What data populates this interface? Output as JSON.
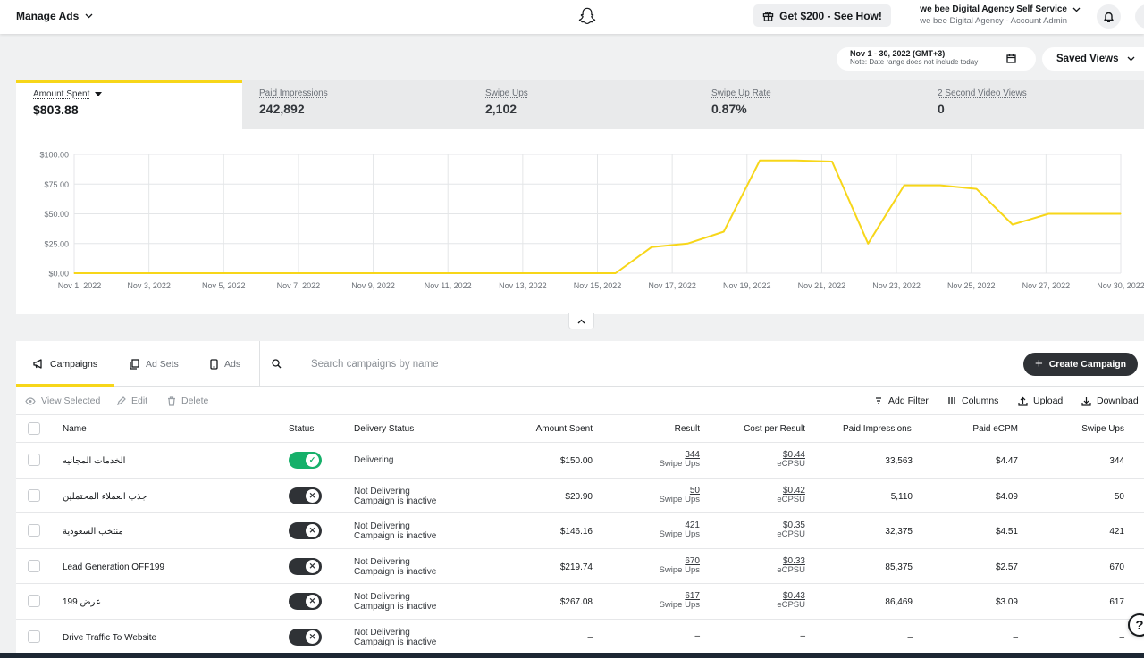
{
  "topbar": {
    "title": "Manage Ads",
    "promo": "Get $200 - See How!",
    "account_name": "we bee Digital Agency Self Service",
    "account_role": "we bee Digital Agency - Account Admin"
  },
  "date_range": {
    "label": "Nov 1 - 30, 2022 (GMT+3)",
    "note": "Note: Date range does not include today"
  },
  "saved_views": "Saved Views",
  "metrics": [
    {
      "label": "Amount Spent",
      "value": "$803.88",
      "active": true
    },
    {
      "label": "Paid Impressions",
      "value": "242,892"
    },
    {
      "label": "Swipe Ups",
      "value": "2,102"
    },
    {
      "label": "Swipe Up Rate",
      "value": "0.87%"
    },
    {
      "label": "2 Second Video Views",
      "value": "0"
    }
  ],
  "chart_data": {
    "type": "line",
    "title": "",
    "xlabel": "",
    "ylabel": "",
    "ylim": [
      0,
      100
    ],
    "y_ticks": [
      "$100.00",
      "$75.00",
      "$50.00",
      "$25.00",
      "$0.00"
    ],
    "x_ticks": [
      "Nov 1, 2022",
      "Nov 3, 2022",
      "Nov 5, 2022",
      "Nov 7, 2022",
      "Nov 9, 2022",
      "Nov 11, 2022",
      "Nov 13, 2022",
      "Nov 15, 2022",
      "Nov 17, 2022",
      "Nov 19, 2022",
      "Nov 21, 2022",
      "Nov 23, 2022",
      "Nov 25, 2022",
      "Nov 27, 2022",
      "Nov 30, 2022"
    ],
    "grid": true,
    "line_color": "#f7d619",
    "series": [
      {
        "x": [
          "Nov 1",
          "Nov 2",
          "Nov 3",
          "Nov 4",
          "Nov 5",
          "Nov 6",
          "Nov 7",
          "Nov 8",
          "Nov 9",
          "Nov 10",
          "Nov 11",
          "Nov 12",
          "Nov 13",
          "Nov 14",
          "Nov 15",
          "Nov 16",
          "Nov 17",
          "Nov 18",
          "Nov 19",
          "Nov 20",
          "Nov 21",
          "Nov 22",
          "Nov 23",
          "Nov 24",
          "Nov 25",
          "Nov 26",
          "Nov 27",
          "Nov 28",
          "Nov 29",
          "Nov 30"
        ],
        "values": [
          0,
          0,
          0,
          0,
          0,
          0,
          0,
          0,
          0,
          0,
          0,
          0,
          0,
          0,
          0,
          0,
          22,
          25,
          35,
          95,
          95,
          94,
          25,
          74,
          74,
          71,
          41,
          50,
          50,
          50
        ]
      }
    ]
  },
  "tabs": [
    {
      "label": "Campaigns",
      "icon": "megaphone-icon"
    },
    {
      "label": "Ad Sets",
      "icon": "copy-icon"
    },
    {
      "label": "Ads",
      "icon": "phone-icon"
    }
  ],
  "search": {
    "placeholder": "Search campaigns by name",
    "value": ""
  },
  "create_campaign": "Create Campaign",
  "actions": {
    "view_selected": "View Selected",
    "edit": "Edit",
    "delete": "Delete",
    "add_filter": "Add Filter",
    "columns": "Columns",
    "upload": "Upload",
    "download": "Download"
  },
  "columns": [
    "Name",
    "Status",
    "Delivery Status",
    "Amount Spent",
    "Result",
    "Cost per Result",
    "Paid Impressions",
    "Paid eCPM",
    "Swipe Ups"
  ],
  "rows": [
    {
      "name": "الخدمات المجانيه",
      "status_on": true,
      "delivery": "Delivering",
      "delivery_sub": "",
      "amount": "$150.00",
      "result": "344",
      "result_sub": "Swipe Ups",
      "cpr": "$0.44",
      "cpr_sub": "eCPSU",
      "impressions": "33,563",
      "ecpm": "$4.47",
      "swipe_ups": "344"
    },
    {
      "name": "جذب العملاء المحتملين",
      "status_on": false,
      "delivery": "Not Delivering",
      "delivery_sub": "Campaign is inactive",
      "amount": "$20.90",
      "result": "50",
      "result_sub": "Swipe Ups",
      "cpr": "$0.42",
      "cpr_sub": "eCPSU",
      "impressions": "5,110",
      "ecpm": "$4.09",
      "swipe_ups": "50"
    },
    {
      "name": "منتخب السعودية",
      "status_on": false,
      "delivery": "Not Delivering",
      "delivery_sub": "Campaign is inactive",
      "amount": "$146.16",
      "result": "421",
      "result_sub": "Swipe Ups",
      "cpr": "$0.35",
      "cpr_sub": "eCPSU",
      "impressions": "32,375",
      "ecpm": "$4.51",
      "swipe_ups": "421"
    },
    {
      "name": "Lead Generation OFF199",
      "status_on": false,
      "delivery": "Not Delivering",
      "delivery_sub": "Campaign is inactive",
      "amount": "$219.74",
      "result": "670",
      "result_sub": "Swipe Ups",
      "cpr": "$0.33",
      "cpr_sub": "eCPSU",
      "impressions": "85,375",
      "ecpm": "$2.57",
      "swipe_ups": "670"
    },
    {
      "name": "عرض 199",
      "status_on": false,
      "delivery": "Not Delivering",
      "delivery_sub": "Campaign is inactive",
      "amount": "$267.08",
      "result": "617",
      "result_sub": "Swipe Ups",
      "cpr": "$0.43",
      "cpr_sub": "eCPSU",
      "impressions": "86,469",
      "ecpm": "$3.09",
      "swipe_ups": "617"
    },
    {
      "name": "Drive Traffic To Website",
      "status_on": false,
      "delivery": "Not Delivering",
      "delivery_sub": "Campaign is inactive",
      "amount": "–",
      "result": "–",
      "result_sub": "",
      "cpr": "–",
      "cpr_sub": "",
      "impressions": "–",
      "ecpm": "–",
      "swipe_ups": "–"
    }
  ]
}
